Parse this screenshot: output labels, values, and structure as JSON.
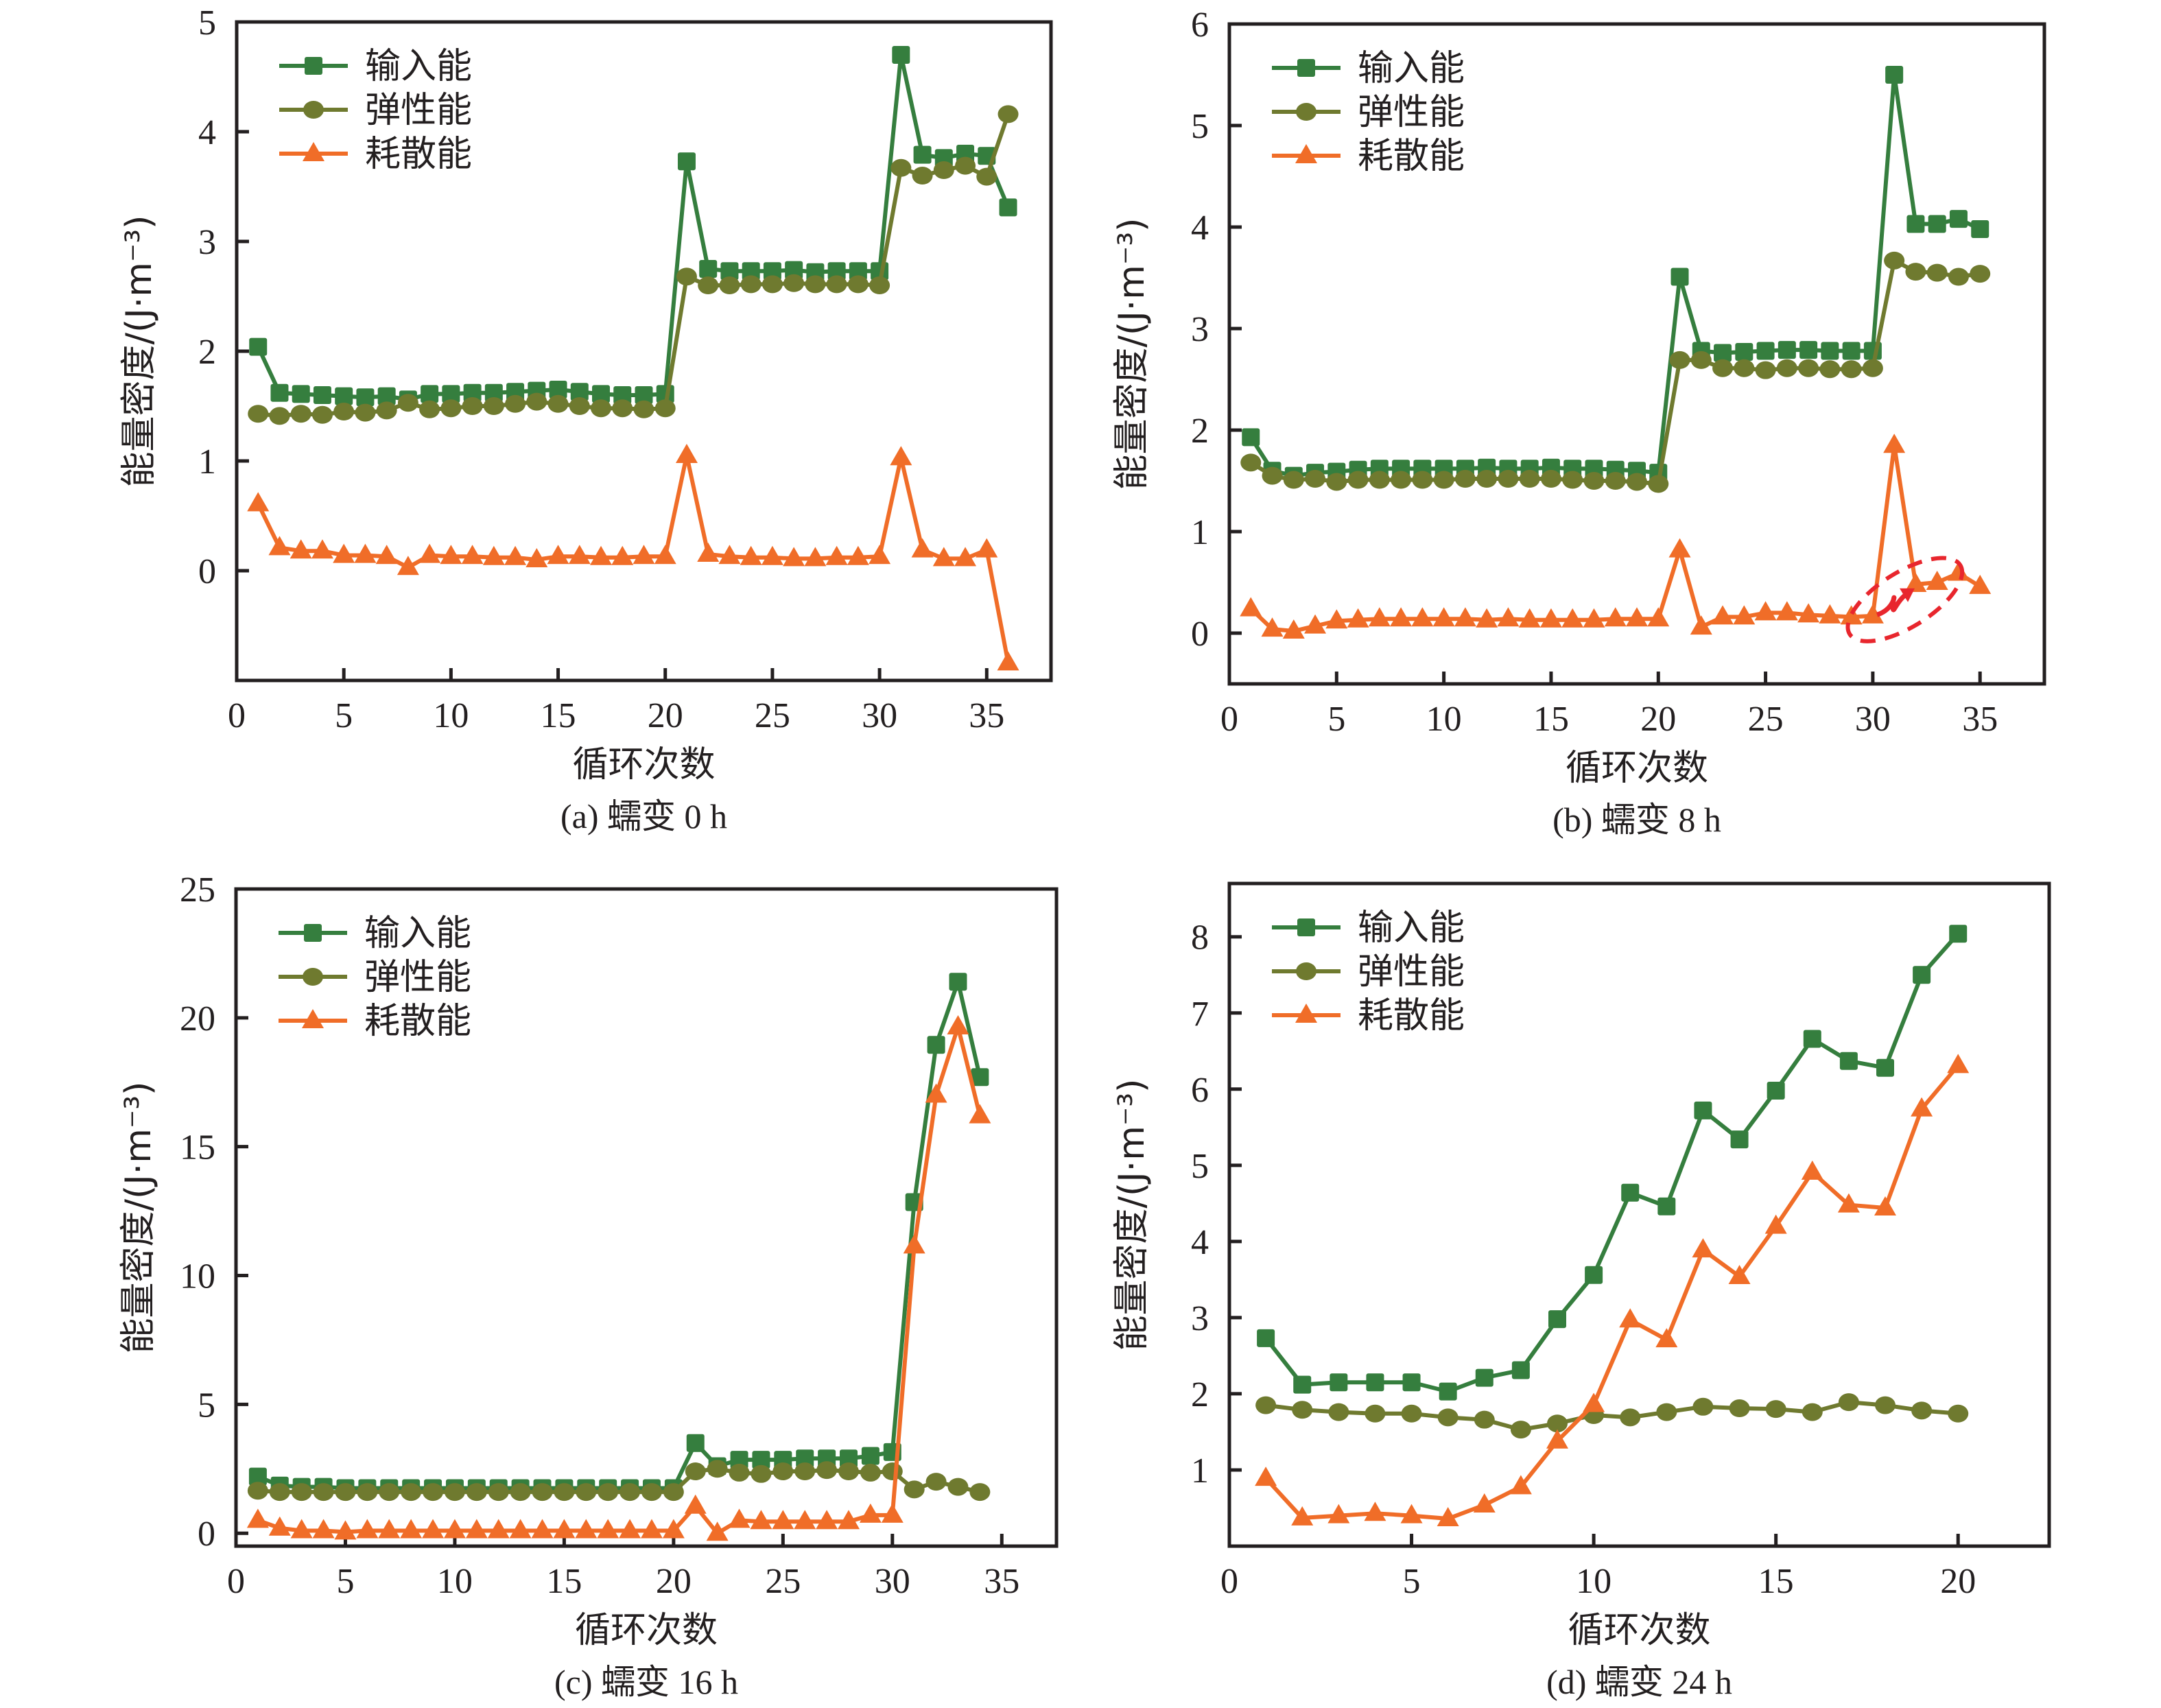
{
  "colors": {
    "input": "#357e3e",
    "elastic": "#6f7a2f",
    "dissipated": "#f06d28",
    "annotation": "#e8262d",
    "axis": "#231f20"
  },
  "legend": {
    "input": "输入能",
    "elastic": "弹性能",
    "dissipated": "耗散能"
  },
  "chart_data": [
    {
      "type": "line",
      "panel": "a",
      "caption": "(a) 蠕变 0 h",
      "xlabel": "循环次数",
      "ylabel": "能量密度/(J·m⁻³)",
      "xlim": [
        0,
        38
      ],
      "ylim": [
        -1,
        5
      ],
      "xticks": [
        0,
        5,
        10,
        15,
        20,
        25,
        30,
        35
      ],
      "yticks": [
        0,
        1,
        2,
        3,
        4,
        5
      ],
      "legend_position": "top-left",
      "x": [
        1,
        2,
        3,
        4,
        5,
        6,
        7,
        8,
        9,
        10,
        11,
        12,
        13,
        14,
        15,
        16,
        17,
        18,
        19,
        20,
        21,
        22,
        23,
        24,
        25,
        26,
        27,
        28,
        29,
        30,
        31,
        32,
        33,
        34,
        35,
        36
      ],
      "series": [
        {
          "name": "输入能",
          "key": "input",
          "marker": "square",
          "values": [
            2.04,
            1.62,
            1.61,
            1.6,
            1.59,
            1.58,
            1.59,
            1.56,
            1.61,
            1.61,
            1.62,
            1.62,
            1.63,
            1.64,
            1.65,
            1.63,
            1.61,
            1.6,
            1.6,
            1.61,
            3.73,
            2.75,
            2.73,
            2.73,
            2.73,
            2.74,
            2.72,
            2.73,
            2.73,
            2.73,
            4.7,
            3.79,
            3.76,
            3.8,
            3.78,
            3.31
          ]
        },
        {
          "name": "弹性能",
          "key": "elastic",
          "marker": "circle",
          "values": [
            1.43,
            1.41,
            1.43,
            1.42,
            1.45,
            1.44,
            1.46,
            1.53,
            1.47,
            1.48,
            1.5,
            1.5,
            1.52,
            1.54,
            1.52,
            1.5,
            1.48,
            1.48,
            1.47,
            1.48,
            2.68,
            2.6,
            2.6,
            2.61,
            2.61,
            2.62,
            2.61,
            2.61,
            2.61,
            2.6,
            3.67,
            3.6,
            3.65,
            3.69,
            3.59,
            4.16
          ]
        },
        {
          "name": "耗散能",
          "key": "dissipated",
          "marker": "triangle",
          "values": [
            0.61,
            0.21,
            0.18,
            0.18,
            0.14,
            0.14,
            0.13,
            0.03,
            0.14,
            0.13,
            0.13,
            0.12,
            0.12,
            0.1,
            0.13,
            0.13,
            0.12,
            0.12,
            0.13,
            0.13,
            1.05,
            0.15,
            0.13,
            0.12,
            0.12,
            0.11,
            0.11,
            0.12,
            0.12,
            0.13,
            1.03,
            0.19,
            0.11,
            0.11,
            0.19,
            -0.84
          ]
        }
      ]
    },
    {
      "type": "line",
      "panel": "b",
      "caption": "(b) 蠕变 8 h",
      "xlabel": "循环次数",
      "ylabel": "能量密度/(J·m⁻³)",
      "xlim": [
        0,
        38
      ],
      "ylim": [
        -0.5,
        6
      ],
      "xticks": [
        0,
        5,
        10,
        15,
        20,
        25,
        30,
        35
      ],
      "yticks": [
        0,
        1,
        2,
        3,
        4,
        5,
        6
      ],
      "legend_position": "top-left",
      "annotation": "dashed-ellipse-with-arrow",
      "x": [
        1,
        2,
        3,
        4,
        5,
        6,
        7,
        8,
        9,
        10,
        11,
        12,
        13,
        14,
        15,
        16,
        17,
        18,
        19,
        20,
        21,
        22,
        23,
        24,
        25,
        26,
        27,
        28,
        29,
        30,
        31,
        32,
        33,
        34,
        35
      ],
      "series": [
        {
          "name": "输入能",
          "key": "input",
          "marker": "square",
          "values": [
            1.93,
            1.6,
            1.55,
            1.58,
            1.59,
            1.61,
            1.62,
            1.62,
            1.62,
            1.62,
            1.62,
            1.63,
            1.62,
            1.62,
            1.63,
            1.62,
            1.62,
            1.61,
            1.6,
            1.58,
            3.51,
            2.78,
            2.76,
            2.77,
            2.78,
            2.79,
            2.79,
            2.78,
            2.78,
            2.78,
            5.5,
            4.03,
            4.03,
            4.08,
            3.98
          ]
        },
        {
          "name": "弹性能",
          "key": "elastic",
          "marker": "circle",
          "values": [
            1.68,
            1.55,
            1.51,
            1.52,
            1.49,
            1.51,
            1.51,
            1.51,
            1.51,
            1.51,
            1.52,
            1.52,
            1.52,
            1.52,
            1.52,
            1.51,
            1.5,
            1.5,
            1.49,
            1.47,
            2.69,
            2.69,
            2.61,
            2.61,
            2.59,
            2.61,
            2.61,
            2.6,
            2.6,
            2.61,
            3.67,
            3.56,
            3.55,
            3.51,
            3.54
          ]
        },
        {
          "name": "耗散能",
          "key": "dissipated",
          "marker": "triangle",
          "values": [
            0.24,
            0.04,
            0.02,
            0.07,
            0.12,
            0.13,
            0.14,
            0.14,
            0.14,
            0.14,
            0.14,
            0.13,
            0.14,
            0.13,
            0.13,
            0.13,
            0.13,
            0.14,
            0.14,
            0.14,
            0.82,
            0.06,
            0.16,
            0.16,
            0.2,
            0.2,
            0.18,
            0.17,
            0.16,
            0.17,
            1.85,
            0.48,
            0.5,
            0.59,
            0.46
          ]
        }
      ]
    },
    {
      "type": "line",
      "panel": "c",
      "caption": "(c) 蠕变 16 h",
      "xlabel": "循环次数",
      "ylabel": "能量密度/(J·m⁻³)",
      "xlim": [
        0,
        37.5
      ],
      "ylim": [
        -0.5,
        25
      ],
      "xticks": [
        0,
        5,
        10,
        15,
        20,
        25,
        30,
        35
      ],
      "yticks": [
        0,
        5,
        10,
        15,
        20,
        25
      ],
      "legend_position": "top-left",
      "x": [
        1,
        2,
        3,
        4,
        5,
        6,
        7,
        8,
        9,
        10,
        11,
        12,
        13,
        14,
        15,
        16,
        17,
        18,
        19,
        20,
        21,
        22,
        23,
        24,
        25,
        26,
        27,
        28,
        29,
        30,
        31,
        32,
        33,
        34
      ],
      "series": [
        {
          "name": "输入能",
          "key": "input",
          "marker": "square",
          "values": [
            2.2,
            1.85,
            1.8,
            1.8,
            1.75,
            1.75,
            1.75,
            1.75,
            1.75,
            1.75,
            1.75,
            1.75,
            1.75,
            1.75,
            1.75,
            1.75,
            1.75,
            1.75,
            1.75,
            1.75,
            3.5,
            2.6,
            2.85,
            2.85,
            2.85,
            2.9,
            2.9,
            2.9,
            3.0,
            3.15,
            12.85,
            18.95,
            21.4,
            17.7
          ]
        },
        {
          "name": "弹性能",
          "key": "elastic",
          "marker": "circle",
          "values": [
            1.65,
            1.6,
            1.6,
            1.6,
            1.6,
            1.6,
            1.6,
            1.6,
            1.6,
            1.6,
            1.6,
            1.6,
            1.6,
            1.6,
            1.6,
            1.6,
            1.6,
            1.6,
            1.6,
            1.6,
            2.4,
            2.5,
            2.35,
            2.3,
            2.4,
            2.4,
            2.45,
            2.4,
            2.35,
            2.4,
            1.7,
            2.0,
            1.8,
            1.6
          ]
        },
        {
          "name": "耗散能",
          "key": "dissipated",
          "marker": "triangle",
          "values": [
            0.5,
            0.2,
            0.1,
            0.1,
            0.05,
            0.1,
            0.1,
            0.1,
            0.1,
            0.1,
            0.1,
            0.1,
            0.1,
            0.1,
            0.1,
            0.1,
            0.1,
            0.1,
            0.1,
            0.1,
            1.05,
            0.0,
            0.5,
            0.45,
            0.45,
            0.45,
            0.45,
            0.45,
            0.7,
            0.7,
            11.15,
            17.0,
            19.65,
            16.2
          ]
        }
      ]
    },
    {
      "type": "line",
      "panel": "d",
      "caption": "(d) 蠕变 24 h",
      "xlabel": "循环次数",
      "ylabel": "能量密度/(J·m⁻³)",
      "xlim": [
        0,
        22.5
      ],
      "ylim": [
        0,
        8.7
      ],
      "xticks": [
        0,
        5,
        10,
        15,
        20
      ],
      "yticks": [
        1,
        2,
        3,
        4,
        5,
        6,
        7,
        8
      ],
      "legend_position": "top-left",
      "x": [
        1,
        2,
        3,
        4,
        5,
        6,
        7,
        8,
        9,
        10,
        11,
        12,
        13,
        14,
        15,
        16,
        17,
        18,
        19,
        20
      ],
      "series": [
        {
          "name": "输入能",
          "key": "input",
          "marker": "square",
          "values": [
            2.73,
            2.12,
            2.15,
            2.15,
            2.15,
            2.03,
            2.21,
            2.31,
            2.98,
            3.56,
            4.64,
            4.46,
            5.72,
            5.34,
            5.98,
            6.66,
            6.37,
            6.28,
            7.5,
            8.04
          ]
        },
        {
          "name": "弹性能",
          "key": "elastic",
          "marker": "circle",
          "values": [
            1.85,
            1.79,
            1.76,
            1.74,
            1.74,
            1.69,
            1.66,
            1.53,
            1.61,
            1.72,
            1.69,
            1.76,
            1.83,
            1.81,
            1.8,
            1.76,
            1.89,
            1.85,
            1.78,
            1.74
          ]
        },
        {
          "name": "耗散能",
          "key": "dissipated",
          "marker": "triangle",
          "values": [
            0.89,
            0.37,
            0.4,
            0.43,
            0.4,
            0.36,
            0.54,
            0.78,
            1.38,
            1.86,
            2.97,
            2.71,
            3.89,
            3.54,
            4.2,
            4.91,
            4.48,
            4.44,
            5.74,
            6.31
          ]
        }
      ]
    }
  ]
}
